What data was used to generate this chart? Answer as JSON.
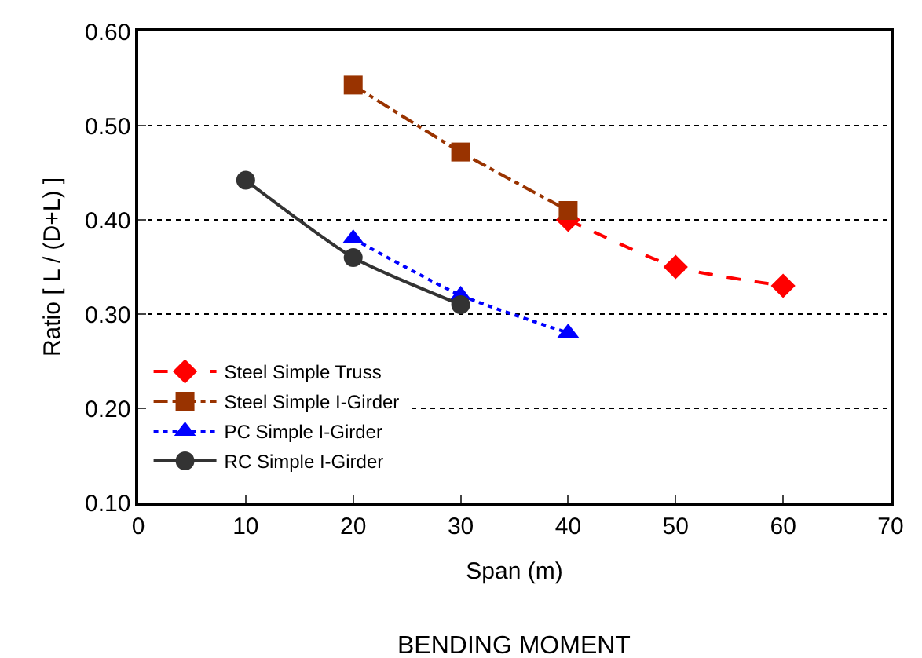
{
  "chart_data": {
    "type": "line",
    "xlabel": "Span (m)",
    "ylabel": "Ratio [ L / (D+L) ]",
    "annotations": [
      "BENDING MOMENT"
    ],
    "xlim": [
      0,
      70
    ],
    "xticks": [
      0,
      10,
      20,
      30,
      40,
      50,
      60,
      70
    ],
    "ylim": [
      0.1,
      0.6
    ],
    "yticks": [
      {
        "value": 0.1,
        "label": "0.10"
      },
      {
        "value": 0.2,
        "label": "0.20"
      },
      {
        "value": 0.3,
        "label": "0.30"
      },
      {
        "value": 0.4,
        "label": "0.40"
      },
      {
        "value": 0.5,
        "label": "0.50"
      },
      {
        "value": 0.6,
        "label": "0.60"
      }
    ],
    "grid": "y",
    "legend": "bottom left",
    "series": [
      {
        "name": "Steel Simple Truss",
        "color": "#ff0000",
        "marker": "diamond",
        "line_style": "dashed",
        "x": [
          40,
          50,
          60
        ],
        "values": [
          0.4,
          0.35,
          0.33
        ]
      },
      {
        "name": "Steel Simple I-Girder",
        "color": "#993300",
        "marker": "square",
        "line_style": "dashdot",
        "x": [
          20,
          30,
          40
        ],
        "values": [
          0.543,
          0.472,
          0.41
        ]
      },
      {
        "name": "PC Simple I-Girder",
        "color": "#0000ff",
        "marker": "triangle",
        "line_style": "dotted",
        "x": [
          20,
          30,
          40
        ],
        "values": [
          0.38,
          0.32,
          0.28
        ]
      },
      {
        "name": "RC Simple I-Girder",
        "color": "#333333",
        "marker": "circle",
        "line_style": "solid",
        "x": [
          10,
          20,
          30
        ],
        "values": [
          0.442,
          0.36,
          0.31
        ]
      }
    ]
  }
}
